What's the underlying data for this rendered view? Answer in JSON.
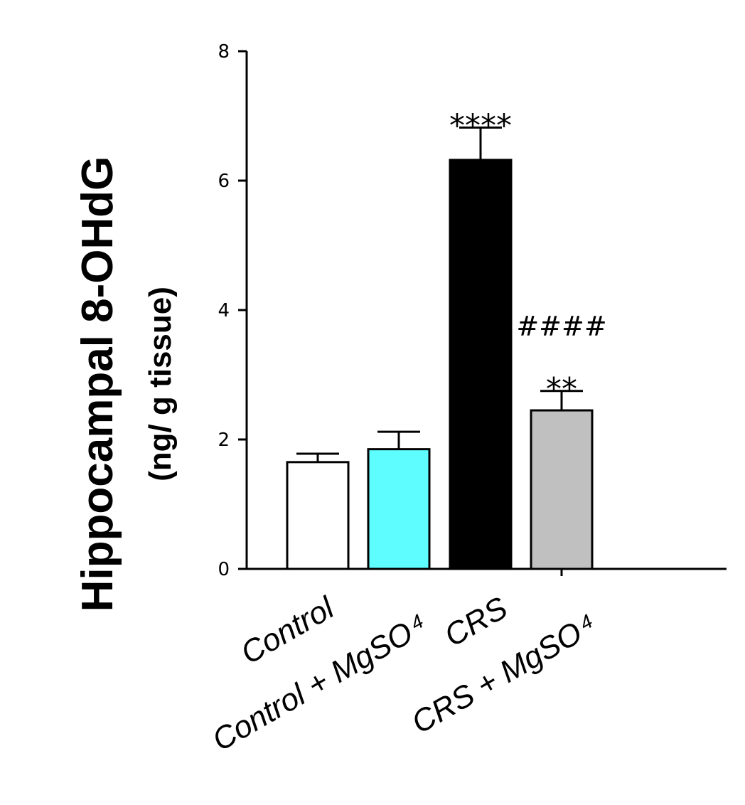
{
  "chart_data": {
    "type": "bar",
    "title": "",
    "ylabel": "Hippocampal 8-OHdG",
    "ylabel_unit": "(ng/ g tissue)",
    "xlabel": "",
    "ylim": [
      0,
      8
    ],
    "yticks": [
      "0",
      "2",
      "4",
      "6",
      "8"
    ],
    "categories": [
      {
        "main": "Control",
        "sub": ""
      },
      {
        "main": "Control + MgSO",
        "sub": "4"
      },
      {
        "main": "CRS",
        "sub": ""
      },
      {
        "main": "CRS + MgSO",
        "sub": "4"
      }
    ],
    "values": [
      1.65,
      1.85,
      6.32,
      2.45
    ],
    "errors": [
      0.13,
      0.27,
      0.5,
      0.3
    ],
    "colors": [
      "#ffffff",
      "#5efdff",
      "#000000",
      "#c0c0c0"
    ],
    "annotations": [
      {
        "category_index": 2,
        "lines": [
          "****"
        ]
      },
      {
        "category_index": 3,
        "lines": [
          "####",
          "**"
        ]
      }
    ],
    "grid": false,
    "legend": "none"
  }
}
